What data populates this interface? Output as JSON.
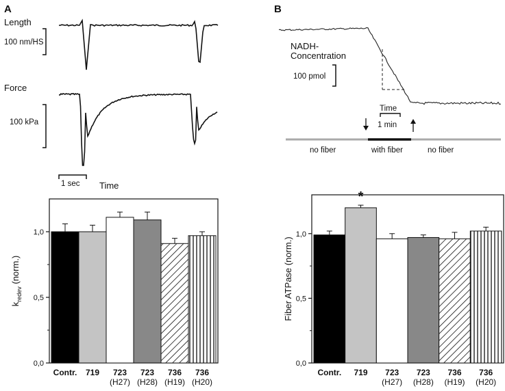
{
  "panelA": {
    "letter": "A",
    "length_label": "Length",
    "length_scale": "100 nm/HS",
    "force_label": "Force",
    "force_scale": "100 kPa",
    "time_scale": "1 sec",
    "time_label": "Time"
  },
  "panelB": {
    "letter": "B",
    "nadh_label_1": "NADH-",
    "nadh_label_2": "Concentration",
    "nadh_scale": "100 pmol",
    "time_label": "Time",
    "time_scale": "1 min",
    "phase_1": "no fiber",
    "phase_2": "with fiber",
    "phase_3": "no fiber"
  },
  "chart_data": [
    {
      "type": "bar",
      "ylabel_main": "k",
      "ylabel_sub": "redev",
      "ylabel_rest": " (norm.)",
      "ylim": [
        0,
        1.25
      ],
      "yticks": [
        "0,0",
        "0,5",
        "1,0"
      ],
      "categories": [
        {
          "line1": "Contr.",
          "line2": ""
        },
        {
          "line1": "719",
          "line2": ""
        },
        {
          "line1": "723",
          "line2": "(H27)"
        },
        {
          "line1": "723",
          "line2": "(H28)"
        },
        {
          "line1": "736",
          "line2": "(H19)"
        },
        {
          "line1": "736",
          "line2": "(H20)"
        }
      ],
      "values": [
        1.0,
        1.0,
        1.11,
        1.09,
        0.91,
        0.97
      ],
      "errors": [
        0.06,
        0.05,
        0.04,
        0.06,
        0.04,
        0.03
      ],
      "fills": [
        "solid-black",
        "solid-lightgray",
        "solid-white",
        "solid-gray",
        "diagonal-hatch",
        "vertical-hatch"
      ]
    },
    {
      "type": "bar",
      "ylabel": "Fiber ATPase (norm.)",
      "ylim": [
        0,
        1.3
      ],
      "yticks": [
        "0,0",
        "0,5",
        "1,0"
      ],
      "categories": [
        {
          "line1": "Contr.",
          "line2": ""
        },
        {
          "line1": "719",
          "line2": ""
        },
        {
          "line1": "723",
          "line2": "(H27)"
        },
        {
          "line1": "723",
          "line2": "(H28)"
        },
        {
          "line1": "736",
          "line2": "(H19)"
        },
        {
          "line1": "736",
          "line2": "(H20)"
        }
      ],
      "values": [
        0.99,
        1.2,
        0.96,
        0.97,
        0.96,
        1.02
      ],
      "errors": [
        0.03,
        0.02,
        0.04,
        0.02,
        0.05,
        0.03
      ],
      "significance": {
        "index": 1,
        "mark": "*"
      },
      "fills": [
        "solid-black",
        "solid-lightgray",
        "solid-white",
        "solid-gray",
        "diagonal-hatch",
        "vertical-hatch"
      ]
    }
  ]
}
